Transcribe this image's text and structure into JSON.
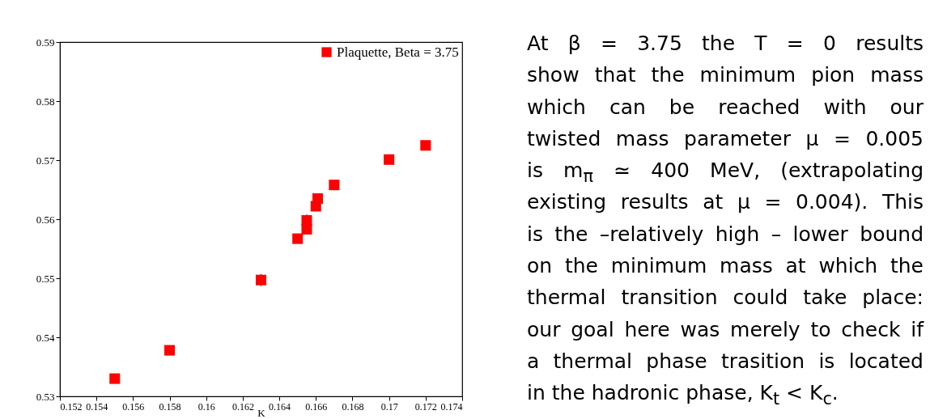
{
  "chart_data": [
    {
      "type": "scatter",
      "xlabel": "K",
      "xlim": [
        0.152,
        0.174
      ],
      "xticks": [
        0.152,
        0.154,
        0.156,
        0.158,
        0.16,
        0.162,
        0.164,
        0.166,
        0.168,
        0.17,
        0.172,
        0.174
      ],
      "ylim": [
        0.53,
        0.59
      ],
      "yticks": [
        0.53,
        0.54,
        0.55,
        0.56,
        0.57,
        0.58,
        0.59
      ],
      "grid": false,
      "legend": "top right",
      "marker": "square",
      "series": [
        {
          "name": "Plaquette, Beta = 3.75",
          "color": "#ff0000",
          "x": [
            0.155,
            0.158,
            0.163,
            0.165,
            0.1655,
            0.1655,
            0.166,
            0.1661,
            0.167,
            0.17,
            0.172
          ],
          "values": [
            0.533,
            0.5378,
            0.5497,
            0.5567,
            0.5583,
            0.5598,
            0.5622,
            0.5635,
            0.5658,
            0.5701,
            0.5725
          ],
          "errors": [
            null,
            null,
            0.001,
            null,
            null,
            0.001,
            null,
            null,
            null,
            null,
            null
          ]
        }
      ]
    },
    {
      "type": "other",
      "annotations": [
        "At β = 3.75 the T = 0 results",
        "show that the minimum pion mass",
        "which can be reached with our",
        "twisted mass parameter μ = 0.005",
        "is m$_{π}$ ≃ 400 MeV, (extrapolating",
        "existing results at μ = 0.004). This",
        "is the –relatively high – lower bound",
        "on the minimum mass at which the",
        "thermal transition could take place:",
        "our goal here was merely to check if",
        "a thermal phase trasition is located",
        "in the hadronic phase, K$_{t}$ < K$_{c}$."
      ]
    }
  ]
}
